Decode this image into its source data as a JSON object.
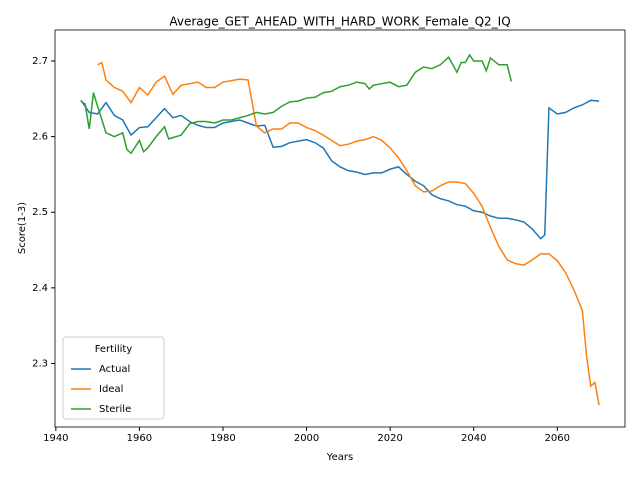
{
  "chart_data": {
    "type": "line",
    "title": "Average_GET_AHEAD_WITH_HARD_WORK_Female_Q2_IQ",
    "xlabel": "Years",
    "ylabel": "Score(1-3)",
    "legend_title": "Fertility",
    "legend": "lower left",
    "xlim": [
      1939.8,
      2076.2
    ],
    "xticks": [
      1940,
      1960,
      1980,
      2000,
      2020,
      2040,
      2060
    ],
    "ylim": [
      2.216,
      2.741
    ],
    "yticks": [
      2.3,
      2.4,
      2.5,
      2.6,
      2.7
    ],
    "series": [
      {
        "name": "Actual",
        "color": "#1f77b4",
        "x": [
          1946,
          1948,
          1950,
          1952,
          1954,
          1956,
          1958,
          1960,
          1962,
          1964,
          1966,
          1968,
          1970,
          1972,
          1974,
          1976,
          1978,
          1980,
          1982,
          1984,
          1986,
          1988,
          1990,
          1992,
          1994,
          1996,
          1998,
          2000,
          2002,
          2004,
          2006,
          2008,
          2010,
          2012,
          2014,
          2016,
          2018,
          2020,
          2022,
          2024,
          2026,
          2028,
          2030,
          2032,
          2034,
          2036,
          2038,
          2040,
          2042,
          2044,
          2046,
          2048,
          2050,
          2052,
          2054,
          2056,
          2057,
          2058,
          2060,
          2062,
          2064,
          2066,
          2068,
          2070
        ],
        "values": [
          2.648,
          2.632,
          2.63,
          2.645,
          2.628,
          2.622,
          2.602,
          2.612,
          2.613,
          2.625,
          2.637,
          2.625,
          2.628,
          2.62,
          2.615,
          2.612,
          2.612,
          2.618,
          2.62,
          2.622,
          2.618,
          2.614,
          2.615,
          2.586,
          2.587,
          2.592,
          2.594,
          2.596,
          2.592,
          2.585,
          2.568,
          2.56,
          2.555,
          2.553,
          2.55,
          2.552,
          2.552,
          2.557,
          2.56,
          2.55,
          2.541,
          2.535,
          2.523,
          2.518,
          2.515,
          2.51,
          2.508,
          2.502,
          2.5,
          2.495,
          2.492,
          2.492,
          2.49,
          2.487,
          2.478,
          2.465,
          2.47,
          2.638,
          2.63,
          2.632,
          2.638,
          2.642,
          2.648,
          2.647
        ]
      },
      {
        "name": "Ideal",
        "color": "#ff7f0e",
        "x": [
          1950,
          1951,
          1952,
          1954,
          1956,
          1958,
          1960,
          1962,
          1964,
          1966,
          1968,
          1970,
          1972,
          1974,
          1976,
          1978,
          1980,
          1982,
          1984,
          1986,
          1988,
          1990,
          1992,
          1994,
          1996,
          1998,
          2000,
          2002,
          2004,
          2006,
          2008,
          2010,
          2012,
          2014,
          2016,
          2018,
          2020,
          2022,
          2024,
          2026,
          2028,
          2030,
          2032,
          2034,
          2036,
          2038,
          2040,
          2042,
          2044,
          2046,
          2048,
          2050,
          2052,
          2054,
          2056,
          2058,
          2060,
          2062,
          2064,
          2066,
          2067,
          2068,
          2069,
          2070
        ],
        "values": [
          2.695,
          2.698,
          2.675,
          2.665,
          2.66,
          2.645,
          2.665,
          2.655,
          2.672,
          2.68,
          2.656,
          2.668,
          2.67,
          2.672,
          2.665,
          2.665,
          2.672,
          2.674,
          2.676,
          2.675,
          2.614,
          2.605,
          2.61,
          2.61,
          2.618,
          2.618,
          2.612,
          2.608,
          2.602,
          2.595,
          2.588,
          2.59,
          2.594,
          2.596,
          2.6,
          2.595,
          2.585,
          2.572,
          2.555,
          2.535,
          2.527,
          2.528,
          2.535,
          2.54,
          2.54,
          2.538,
          2.525,
          2.508,
          2.48,
          2.455,
          2.437,
          2.432,
          2.43,
          2.437,
          2.445,
          2.445,
          2.436,
          2.42,
          2.397,
          2.37,
          2.31,
          2.27,
          2.275,
          2.245
        ]
      },
      {
        "name": "Sterile",
        "color": "#2ca02c",
        "x": [
          1946,
          1947,
          1948,
          1949,
          1950,
          1952,
          1954,
          1956,
          1957,
          1958,
          1960,
          1961,
          1962,
          1964,
          1966,
          1967,
          1970,
          1972,
          1974,
          1976,
          1978,
          1980,
          1982,
          1984,
          1986,
          1988,
          1990,
          1992,
          1994,
          1996,
          1998,
          2000,
          2002,
          2004,
          2006,
          2008,
          2010,
          2012,
          2014,
          2015,
          2016,
          2018,
          2020,
          2022,
          2024,
          2026,
          2028,
          2030,
          2032,
          2034,
          2036,
          2037,
          2038,
          2039,
          2040,
          2042,
          2043,
          2044,
          2046,
          2048,
          2049
        ],
        "values": [
          2.647,
          2.643,
          2.61,
          2.658,
          2.64,
          2.605,
          2.6,
          2.605,
          2.583,
          2.578,
          2.595,
          2.58,
          2.585,
          2.6,
          2.613,
          2.597,
          2.602,
          2.617,
          2.62,
          2.62,
          2.618,
          2.622,
          2.622,
          2.625,
          2.628,
          2.632,
          2.63,
          2.632,
          2.64,
          2.646,
          2.647,
          2.651,
          2.652,
          2.658,
          2.66,
          2.666,
          2.668,
          2.672,
          2.67,
          2.663,
          2.668,
          2.67,
          2.672,
          2.666,
          2.668,
          2.685,
          2.692,
          2.69,
          2.695,
          2.705,
          2.685,
          2.698,
          2.698,
          2.708,
          2.7,
          2.7,
          2.687,
          2.704,
          2.695,
          2.695,
          2.673
        ]
      }
    ]
  }
}
